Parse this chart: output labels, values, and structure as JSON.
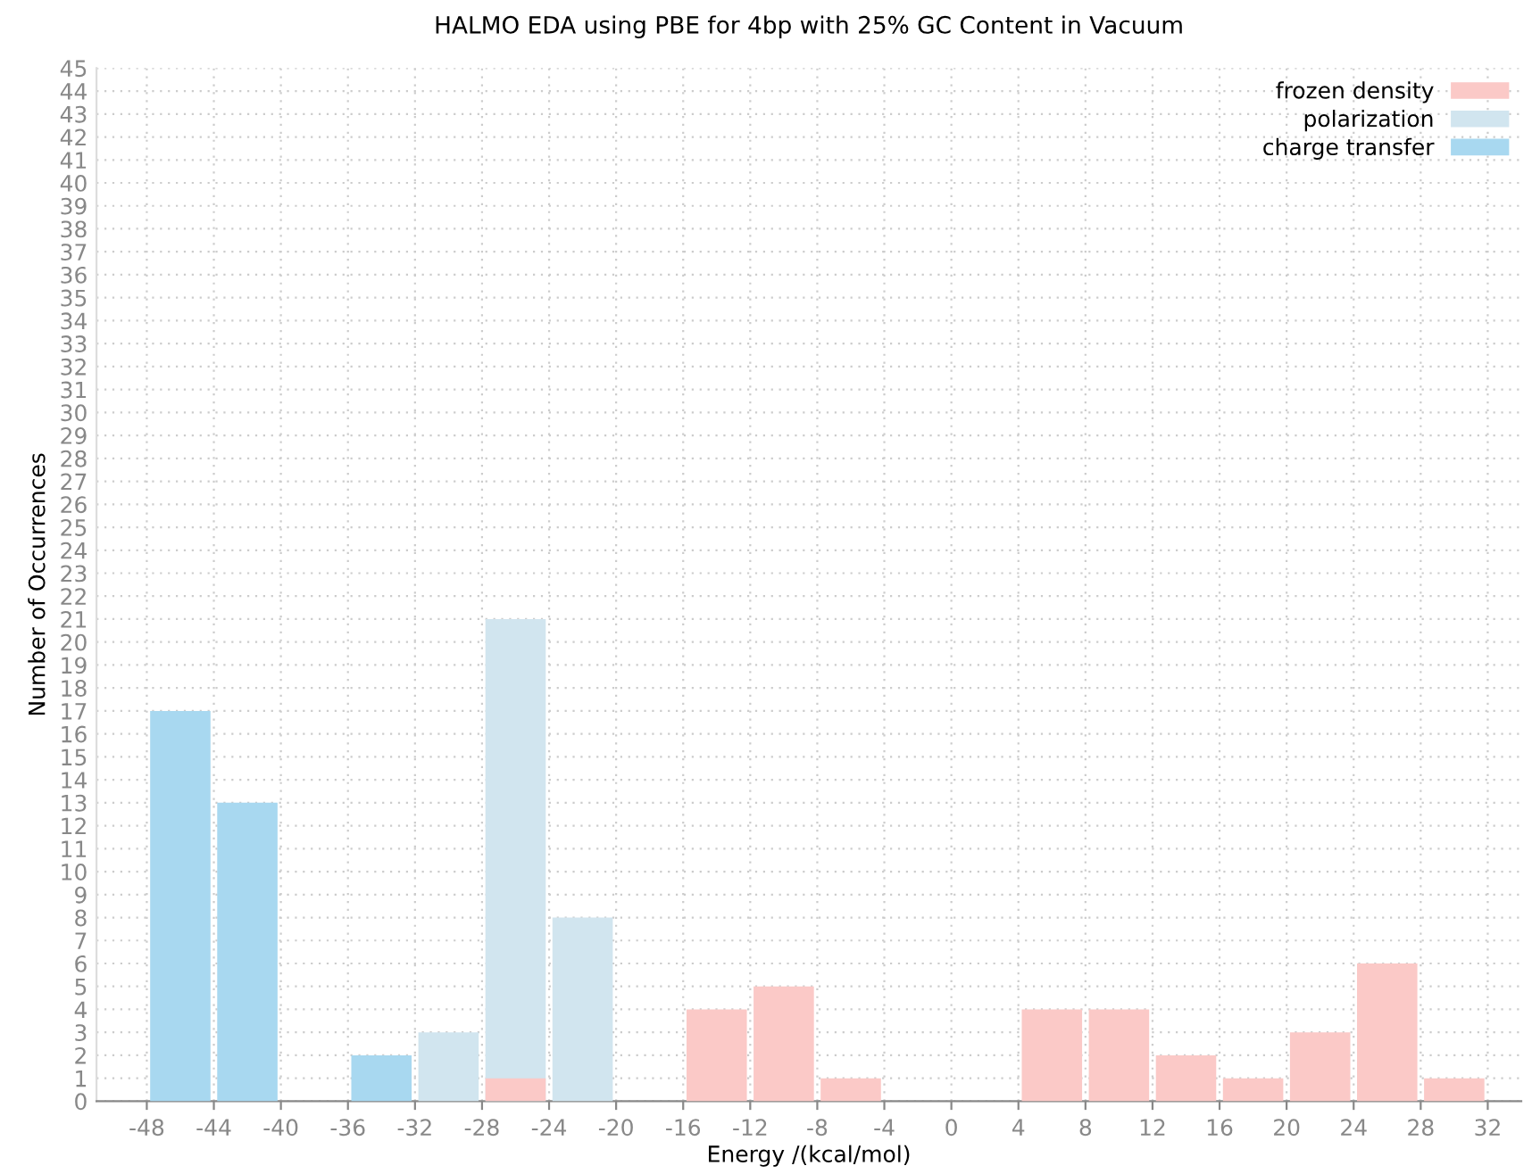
{
  "chart_data": {
    "type": "histogram",
    "title": "HALMO EDA using PBE for 4bp with 25% GC Content in Vacuum",
    "xlabel": "Energy /(kcal/mol)",
    "ylabel": "Number of Occurrences",
    "bins": [
      -48,
      -44,
      -40,
      -36,
      -32,
      -28,
      -24,
      -20,
      -16,
      -12,
      -8,
      -4,
      0,
      4,
      8,
      12,
      16,
      20,
      24,
      28,
      32
    ],
    "series": [
      {
        "name": "frozen density",
        "color": "#fbc9c7",
        "values": [
          null,
          null,
          null,
          null,
          null,
          1,
          null,
          null,
          4,
          5,
          1,
          null,
          null,
          4,
          4,
          2,
          1,
          3,
          6,
          1
        ]
      },
      {
        "name": "polarization",
        "color": "#d1e5ef",
        "values": [
          null,
          null,
          null,
          null,
          3,
          21,
          8,
          null,
          null,
          null,
          null,
          null,
          null,
          null,
          null,
          null,
          null,
          null,
          null,
          null
        ]
      },
      {
        "name": "charge transfer",
        "color": "#a8d8f0",
        "values": [
          17,
          13,
          null,
          2,
          null,
          null,
          null,
          null,
          null,
          null,
          null,
          null,
          null,
          null,
          null,
          null,
          null,
          null,
          null,
          null
        ]
      }
    ],
    "xlim": [
      -51,
      34
    ],
    "xticks": [
      -48,
      -44,
      -40,
      -36,
      -32,
      -28,
      -24,
      -20,
      -16,
      -12,
      -8,
      -4,
      0,
      4,
      8,
      12,
      16,
      20,
      24,
      28,
      32
    ],
    "ylim": [
      0,
      45
    ],
    "yticks": [
      0,
      1,
      2,
      3,
      4,
      5,
      6,
      7,
      8,
      9,
      10,
      11,
      12,
      13,
      14,
      15,
      16,
      17,
      18,
      19,
      20,
      21,
      22,
      23,
      24,
      25,
      26,
      27,
      28,
      29,
      30,
      31,
      32,
      33,
      34,
      35,
      36,
      37,
      38,
      39,
      40,
      41,
      42,
      43,
      44,
      45
    ],
    "grid": true,
    "legend": "top right"
  }
}
